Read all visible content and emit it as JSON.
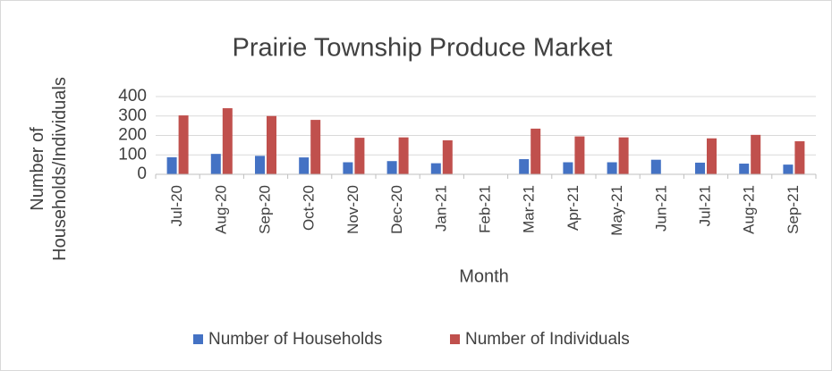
{
  "chart_data": {
    "type": "bar",
    "title": "Prairie Township Produce Market",
    "x_label": "Month",
    "y_label": "Number of Households/Individuals",
    "categories": [
      "Jul-20",
      "Aug-20",
      "Sep-20",
      "Oct-20",
      "Nov-20",
      "Dec-20",
      "Jan-21",
      "Feb-21",
      "Mar-21",
      "Apr-21",
      "May-21",
      "Jun-21",
      "Jul-21",
      "Aug-21",
      "Sep-21"
    ],
    "series": [
      {
        "name": "Number of Households",
        "color": "#4472c4",
        "values": [
          88,
          105,
          95,
          87,
          62,
          68,
          57,
          null,
          78,
          62,
          62,
          75,
          60,
          55,
          50
        ]
      },
      {
        "name": "Number of Individuals",
        "color": "#c0504d",
        "values": [
          303,
          340,
          300,
          280,
          188,
          190,
          175,
          null,
          235,
          195,
          190,
          null,
          185,
          203,
          170
        ]
      }
    ],
    "ylim": [
      0,
      400
    ],
    "yticks": [
      0,
      100,
      200,
      300,
      400
    ],
    "grid": true,
    "legend": "bottom"
  }
}
